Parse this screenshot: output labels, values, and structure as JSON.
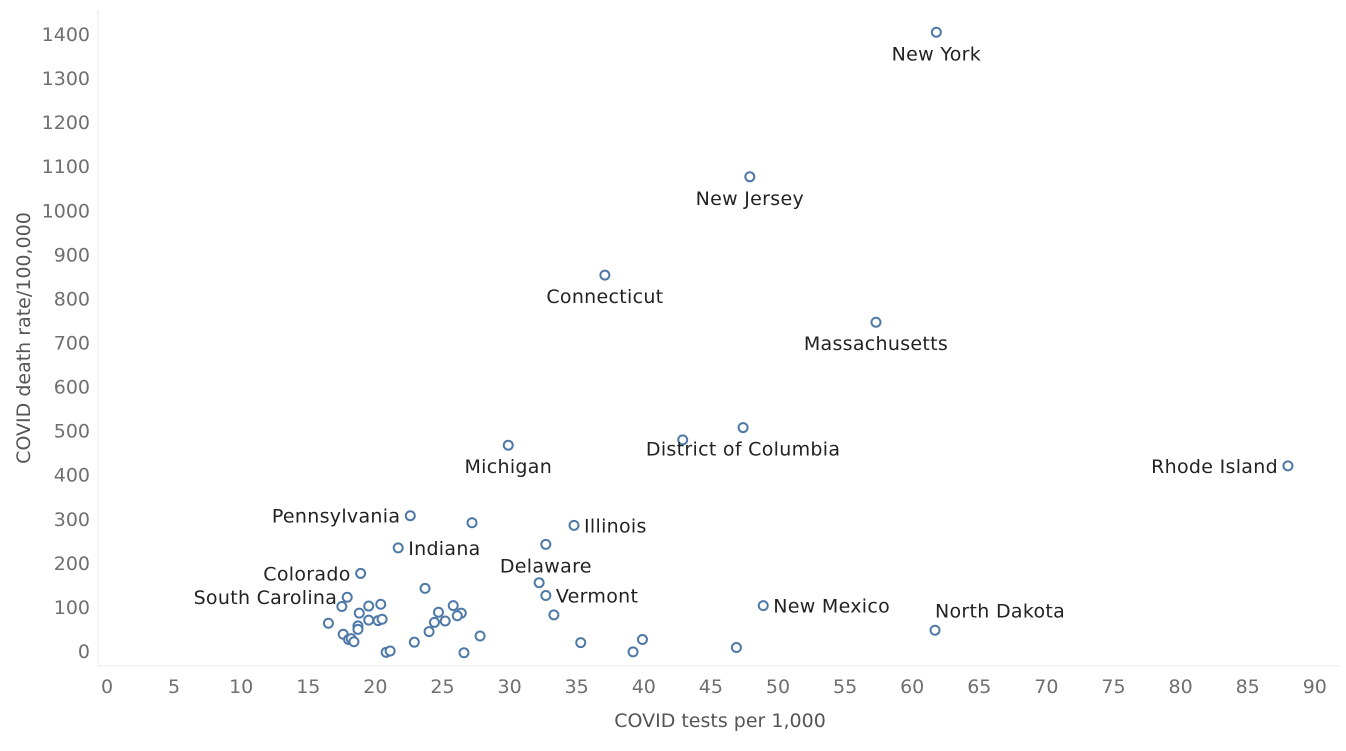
{
  "chart_data": {
    "type": "scatter",
    "title": "",
    "xlabel": "COVID tests per 1,000",
    "ylabel": "COVID death rate/100,000",
    "xlim": [
      0,
      92
    ],
    "ylim": [
      -30,
      1440
    ],
    "x_ticks": [
      0,
      5,
      10,
      15,
      20,
      25,
      30,
      35,
      40,
      45,
      50,
      55,
      60,
      65,
      70,
      75,
      80,
      85,
      90
    ],
    "y_ticks": [
      0,
      100,
      200,
      300,
      400,
      500,
      600,
      700,
      800,
      900,
      1000,
      1100,
      1200,
      1300,
      1400
    ],
    "grid": false,
    "marker_color": "#4e79a7",
    "points": [
      {
        "x": 61.8,
        "y": 1404,
        "label": "New York",
        "label_pos": "below"
      },
      {
        "x": 47.9,
        "y": 1076,
        "label": "New Jersey",
        "label_pos": "below"
      },
      {
        "x": 37.1,
        "y": 853,
        "label": "Connecticut",
        "label_pos": "below"
      },
      {
        "x": 57.3,
        "y": 746,
        "label": "Massachusetts",
        "label_pos": "below"
      },
      {
        "x": 47.4,
        "y": 507,
        "label": "District of Columbia",
        "label_pos": "below"
      },
      {
        "x": 29.9,
        "y": 467,
        "label": "Michigan",
        "label_pos": "below"
      },
      {
        "x": 88.0,
        "y": 420,
        "label": "Rhode Island",
        "label_pos": "left"
      },
      {
        "x": 42.9,
        "y": 479
      },
      {
        "x": 22.6,
        "y": 307,
        "label": "Pennsylvania",
        "label_pos": "left"
      },
      {
        "x": 27.2,
        "y": 291
      },
      {
        "x": 34.8,
        "y": 285,
        "label": "Illinois",
        "label_pos": "right"
      },
      {
        "x": 21.7,
        "y": 234,
        "label": "Indiana",
        "label_pos": "right"
      },
      {
        "x": 32.7,
        "y": 242,
        "label": "Delaware",
        "label_pos": "below"
      },
      {
        "x": 18.9,
        "y": 176,
        "label": "Colorado",
        "label_pos": "left"
      },
      {
        "x": 23.7,
        "y": 142
      },
      {
        "x": 32.2,
        "y": 155
      },
      {
        "x": 32.7,
        "y": 126,
        "label": "Vermont",
        "label_pos": "right"
      },
      {
        "x": 17.9,
        "y": 122,
        "label": "South Carolina",
        "label_pos": "left"
      },
      {
        "x": 48.9,
        "y": 103,
        "label": "New Mexico",
        "label_pos": "right"
      },
      {
        "x": 17.5,
        "y": 101
      },
      {
        "x": 19.5,
        "y": 102
      },
      {
        "x": 20.4,
        "y": 106
      },
      {
        "x": 25.8,
        "y": 103
      },
      {
        "x": 18.8,
        "y": 86
      },
      {
        "x": 24.7,
        "y": 88
      },
      {
        "x": 26.4,
        "y": 86
      },
      {
        "x": 26.1,
        "y": 80
      },
      {
        "x": 33.3,
        "y": 82
      },
      {
        "x": 19.5,
        "y": 70
      },
      {
        "x": 20.2,
        "y": 69
      },
      {
        "x": 20.5,
        "y": 72
      },
      {
        "x": 24.4,
        "y": 65
      },
      {
        "x": 25.2,
        "y": 68
      },
      {
        "x": 16.5,
        "y": 63
      },
      {
        "x": 18.7,
        "y": 57
      },
      {
        "x": 18.7,
        "y": 49
      },
      {
        "x": 17.6,
        "y": 38
      },
      {
        "x": 18.0,
        "y": 26
      },
      {
        "x": 18.2,
        "y": 28
      },
      {
        "x": 18.4,
        "y": 21
      },
      {
        "x": 24.0,
        "y": 44
      },
      {
        "x": 27.8,
        "y": 34
      },
      {
        "x": 61.7,
        "y": 47,
        "label": "North Dakota",
        "label_pos": "above-right"
      },
      {
        "x": 22.9,
        "y": 20
      },
      {
        "x": 35.3,
        "y": 19
      },
      {
        "x": 39.9,
        "y": 26
      },
      {
        "x": 20.8,
        "y": -3
      },
      {
        "x": 21.1,
        "y": 0
      },
      {
        "x": 26.6,
        "y": -4
      },
      {
        "x": 39.2,
        "y": -2
      },
      {
        "x": 46.9,
        "y": 8
      }
    ]
  }
}
